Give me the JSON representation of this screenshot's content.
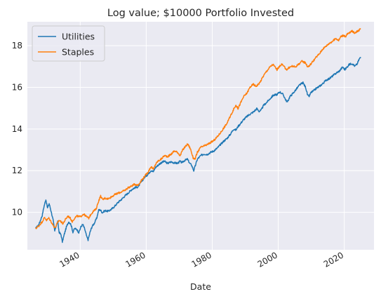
{
  "chart_data": {
    "type": "line",
    "title": "Log value; $10000 Portfolio Invested",
    "xlabel": "Date",
    "ylabel": "",
    "xlim": [
      1924.0,
      2029.0
    ],
    "ylim": [
      8.2,
      19.15
    ],
    "x_ticks": [
      1940,
      1960,
      1980,
      2000,
      2020
    ],
    "y_ticks": [
      10,
      12,
      14,
      16,
      18
    ],
    "x_tick_labels": [
      "1940",
      "1960",
      "1980",
      "2000",
      "2020"
    ],
    "y_tick_labels": [
      "10",
      "12",
      "14",
      "16",
      "18"
    ],
    "grid": true,
    "legend_position": "upper-left",
    "series": [
      {
        "name": "Utilities",
        "color": "#1f77b4",
        "points": [
          [
            1926.5,
            9.22
          ],
          [
            1927.5,
            9.42
          ],
          [
            1928.5,
            9.85
          ],
          [
            1929.0,
            10.25
          ],
          [
            1929.6,
            10.62
          ],
          [
            1930.1,
            10.2
          ],
          [
            1930.6,
            10.42
          ],
          [
            1931.2,
            10.05
          ],
          [
            1931.8,
            9.62
          ],
          [
            1932.3,
            9.1
          ],
          [
            1932.7,
            9.35
          ],
          [
            1933.2,
            9.55
          ],
          [
            1933.6,
            9.05
          ],
          [
            1934.2,
            8.92
          ],
          [
            1934.6,
            8.58
          ],
          [
            1935.2,
            8.95
          ],
          [
            1935.8,
            9.28
          ],
          [
            1936.5,
            9.55
          ],
          [
            1937.2,
            9.42
          ],
          [
            1937.8,
            9.05
          ],
          [
            1938.3,
            9.22
          ],
          [
            1939.0,
            9.18
          ],
          [
            1939.6,
            9.02
          ],
          [
            1940.2,
            9.3
          ],
          [
            1940.8,
            9.42
          ],
          [
            1941.4,
            9.18
          ],
          [
            1942.0,
            8.82
          ],
          [
            1942.4,
            8.68
          ],
          [
            1943.0,
            9.05
          ],
          [
            1943.6,
            9.32
          ],
          [
            1944.3,
            9.48
          ],
          [
            1945.0,
            9.72
          ],
          [
            1945.6,
            10.1
          ],
          [
            1946.1,
            10.12
          ],
          [
            1946.7,
            9.98
          ],
          [
            1947.5,
            10.08
          ],
          [
            1948.5,
            10.05
          ],
          [
            1949.5,
            10.15
          ],
          [
            1950.5,
            10.3
          ],
          [
            1951.5,
            10.48
          ],
          [
            1952.5,
            10.62
          ],
          [
            1953.5,
            10.78
          ],
          [
            1954.5,
            10.92
          ],
          [
            1955.5,
            11.08
          ],
          [
            1956.5,
            11.18
          ],
          [
            1957.5,
            11.22
          ],
          [
            1958.5,
            11.45
          ],
          [
            1959.5,
            11.68
          ],
          [
            1960.5,
            11.82
          ],
          [
            1961.5,
            12.02
          ],
          [
            1962.2,
            11.95
          ],
          [
            1962.8,
            12.15
          ],
          [
            1963.5,
            12.25
          ],
          [
            1964.5,
            12.38
          ],
          [
            1965.5,
            12.45
          ],
          [
            1966.5,
            12.35
          ],
          [
            1967.5,
            12.42
          ],
          [
            1968.5,
            12.38
          ],
          [
            1969.5,
            12.35
          ],
          [
            1970.2,
            12.45
          ],
          [
            1970.8,
            12.38
          ],
          [
            1971.5,
            12.48
          ],
          [
            1972.5,
            12.55
          ],
          [
            1973.2,
            12.35
          ],
          [
            1973.8,
            12.25
          ],
          [
            1974.4,
            12.0
          ],
          [
            1974.8,
            12.2
          ],
          [
            1975.5,
            12.55
          ],
          [
            1976.5,
            12.72
          ],
          [
            1977.5,
            12.8
          ],
          [
            1978.5,
            12.78
          ],
          [
            1979.5,
            12.88
          ],
          [
            1980.5,
            12.95
          ],
          [
            1981.5,
            13.08
          ],
          [
            1982.5,
            13.25
          ],
          [
            1983.5,
            13.42
          ],
          [
            1984.5,
            13.55
          ],
          [
            1985.5,
            13.75
          ],
          [
            1986.5,
            14.0
          ],
          [
            1987.2,
            13.95
          ],
          [
            1987.8,
            14.12
          ],
          [
            1988.5,
            14.25
          ],
          [
            1989.5,
            14.45
          ],
          [
            1990.5,
            14.6
          ],
          [
            1991.5,
            14.72
          ],
          [
            1992.5,
            14.82
          ],
          [
            1993.5,
            14.98
          ],
          [
            1994.2,
            14.85
          ],
          [
            1994.8,
            14.9
          ],
          [
            1995.5,
            15.12
          ],
          [
            1996.5,
            15.28
          ],
          [
            1997.5,
            15.45
          ],
          [
            1998.5,
            15.62
          ],
          [
            1999.5,
            15.65
          ],
          [
            2000.5,
            15.78
          ],
          [
            2001.5,
            15.65
          ],
          [
            2002.3,
            15.38
          ],
          [
            2002.8,
            15.3
          ],
          [
            2003.5,
            15.55
          ],
          [
            2004.5,
            15.72
          ],
          [
            2005.5,
            15.92
          ],
          [
            2006.5,
            16.12
          ],
          [
            2007.5,
            16.22
          ],
          [
            2008.3,
            16.0
          ],
          [
            2008.9,
            15.62
          ],
          [
            2009.3,
            15.55
          ],
          [
            2009.9,
            15.75
          ],
          [
            2010.6,
            15.82
          ],
          [
            2011.5,
            15.95
          ],
          [
            2012.5,
            16.05
          ],
          [
            2013.5,
            16.18
          ],
          [
            2014.5,
            16.35
          ],
          [
            2015.5,
            16.42
          ],
          [
            2016.5,
            16.55
          ],
          [
            2017.5,
            16.68
          ],
          [
            2018.5,
            16.78
          ],
          [
            2019.5,
            16.98
          ],
          [
            2020.2,
            16.85
          ],
          [
            2020.7,
            16.95
          ],
          [
            2021.5,
            17.1
          ],
          [
            2022.4,
            17.15
          ],
          [
            2023.2,
            17.02
          ],
          [
            2023.9,
            17.12
          ],
          [
            2024.5,
            17.35
          ],
          [
            2025.0,
            17.45
          ]
        ]
      },
      {
        "name": "Staples",
        "color": "#ff7f0e",
        "points": [
          [
            1926.5,
            9.22
          ],
          [
            1927.5,
            9.35
          ],
          [
            1928.5,
            9.55
          ],
          [
            1929.2,
            9.75
          ],
          [
            1929.8,
            9.62
          ],
          [
            1930.5,
            9.72
          ],
          [
            1931.2,
            9.55
          ],
          [
            1931.8,
            9.38
          ],
          [
            1932.4,
            9.25
          ],
          [
            1933.0,
            9.45
          ],
          [
            1933.6,
            9.62
          ],
          [
            1934.2,
            9.55
          ],
          [
            1934.8,
            9.45
          ],
          [
            1935.5,
            9.65
          ],
          [
            1936.3,
            9.82
          ],
          [
            1937.0,
            9.72
          ],
          [
            1937.6,
            9.55
          ],
          [
            1938.3,
            9.72
          ],
          [
            1939.0,
            9.82
          ],
          [
            1940.0,
            9.78
          ],
          [
            1941.0,
            9.92
          ],
          [
            1942.0,
            9.78
          ],
          [
            1942.6,
            9.72
          ],
          [
            1943.3,
            9.92
          ],
          [
            1944.0,
            10.05
          ],
          [
            1944.8,
            10.15
          ],
          [
            1945.6,
            10.55
          ],
          [
            1946.2,
            10.78
          ],
          [
            1946.8,
            10.6
          ],
          [
            1947.5,
            10.68
          ],
          [
            1948.5,
            10.65
          ],
          [
            1949.5,
            10.75
          ],
          [
            1950.5,
            10.85
          ],
          [
            1951.5,
            10.92
          ],
          [
            1952.5,
            10.98
          ],
          [
            1953.5,
            11.05
          ],
          [
            1954.5,
            11.18
          ],
          [
            1955.5,
            11.25
          ],
          [
            1956.5,
            11.35
          ],
          [
            1957.5,
            11.3
          ],
          [
            1958.5,
            11.52
          ],
          [
            1959.5,
            11.72
          ],
          [
            1960.5,
            11.92
          ],
          [
            1961.5,
            12.2
          ],
          [
            1962.2,
            12.05
          ],
          [
            1962.8,
            12.3
          ],
          [
            1963.5,
            12.45
          ],
          [
            1964.5,
            12.55
          ],
          [
            1965.5,
            12.72
          ],
          [
            1966.5,
            12.68
          ],
          [
            1967.5,
            12.78
          ],
          [
            1968.5,
            12.95
          ],
          [
            1969.5,
            12.88
          ],
          [
            1970.3,
            12.72
          ],
          [
            1971.0,
            12.98
          ],
          [
            1971.8,
            13.15
          ],
          [
            1972.6,
            13.28
          ],
          [
            1973.4,
            13.05
          ],
          [
            1974.2,
            12.62
          ],
          [
            1974.8,
            12.55
          ],
          [
            1975.5,
            12.88
          ],
          [
            1976.5,
            13.12
          ],
          [
            1977.5,
            13.18
          ],
          [
            1978.5,
            13.25
          ],
          [
            1979.5,
            13.35
          ],
          [
            1980.5,
            13.45
          ],
          [
            1981.5,
            13.62
          ],
          [
            1982.5,
            13.82
          ],
          [
            1983.5,
            14.05
          ],
          [
            1984.5,
            14.28
          ],
          [
            1985.5,
            14.62
          ],
          [
            1986.5,
            14.95
          ],
          [
            1987.2,
            15.15
          ],
          [
            1987.8,
            14.98
          ],
          [
            1988.5,
            15.22
          ],
          [
            1989.5,
            15.55
          ],
          [
            1990.5,
            15.72
          ],
          [
            1991.5,
            16.02
          ],
          [
            1992.5,
            16.15
          ],
          [
            1993.2,
            16.05
          ],
          [
            1993.8,
            16.12
          ],
          [
            1994.5,
            16.25
          ],
          [
            1995.5,
            16.55
          ],
          [
            1996.5,
            16.78
          ],
          [
            1997.5,
            16.98
          ],
          [
            1998.4,
            17.1
          ],
          [
            1999.0,
            16.98
          ],
          [
            1999.6,
            16.85
          ],
          [
            2000.3,
            16.98
          ],
          [
            2001.0,
            17.12
          ],
          [
            2001.8,
            16.98
          ],
          [
            2002.6,
            16.85
          ],
          [
            2003.3,
            16.95
          ],
          [
            2004.2,
            17.02
          ],
          [
            2005.2,
            16.98
          ],
          [
            2006.2,
            17.12
          ],
          [
            2007.2,
            17.25
          ],
          [
            2008.3,
            17.18
          ],
          [
            2008.9,
            16.98
          ],
          [
            2009.5,
            17.05
          ],
          [
            2010.5,
            17.25
          ],
          [
            2011.5,
            17.45
          ],
          [
            2012.5,
            17.62
          ],
          [
            2013.5,
            17.85
          ],
          [
            2014.5,
            17.98
          ],
          [
            2015.5,
            18.12
          ],
          [
            2016.5,
            18.22
          ],
          [
            2017.5,
            18.35
          ],
          [
            2018.3,
            18.25
          ],
          [
            2019.0,
            18.45
          ],
          [
            2019.8,
            18.5
          ],
          [
            2020.3,
            18.42
          ],
          [
            2020.9,
            18.55
          ],
          [
            2021.6,
            18.62
          ],
          [
            2022.4,
            18.7
          ],
          [
            2023.1,
            18.62
          ],
          [
            2023.8,
            18.68
          ],
          [
            2024.5,
            18.75
          ],
          [
            2025.0,
            18.82
          ]
        ]
      }
    ]
  }
}
